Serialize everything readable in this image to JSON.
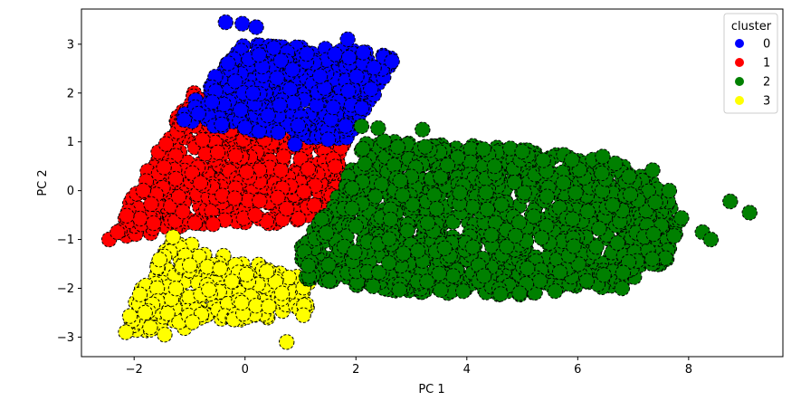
{
  "chart_data": {
    "type": "scatter",
    "title": "",
    "xlabel": "PC 1",
    "ylabel": "PC 2",
    "xlim": [
      -2.95,
      9.7
    ],
    "ylim": [
      -3.4,
      3.72
    ],
    "xticks": [
      -2,
      0,
      2,
      4,
      6,
      8
    ],
    "yticks": [
      -3,
      -2,
      -1,
      0,
      1,
      2,
      3
    ],
    "grid": false,
    "legend": {
      "title": "cluster",
      "placement": "top-right"
    },
    "series": [
      {
        "name": "0",
        "color": "#0000ff",
        "regions": [
          [
            -1.25,
            1.45
          ],
          [
            0.0,
            3.05
          ],
          [
            2.7,
            2.8
          ],
          [
            2.4,
            2.0
          ],
          [
            1.8,
            1.0
          ],
          [
            0.1,
            1.2
          ]
        ],
        "points": [
          [
            -0.35,
            3.45
          ],
          [
            -0.05,
            3.42
          ],
          [
            0.2,
            3.35
          ],
          [
            1.85,
            3.1
          ],
          [
            2.65,
            2.65
          ],
          [
            -1.1,
            1.45
          ],
          [
            1.5,
            1.05
          ],
          [
            0.9,
            0.95
          ]
        ]
      },
      {
        "name": "1",
        "color": "#ff0000",
        "regions": [
          [
            -2.45,
            -1.0
          ],
          [
            -0.95,
            2.05
          ],
          [
            0.2,
            1.2
          ],
          [
            1.8,
            1.0
          ],
          [
            1.85,
            -0.45
          ],
          [
            0.9,
            -0.65
          ],
          [
            -1.0,
            -0.75
          ]
        ],
        "points": [
          [
            -2.45,
            -1.0
          ],
          [
            -2.3,
            -0.85
          ],
          [
            1.25,
            -0.3
          ],
          [
            -0.2,
            2.0
          ]
        ]
      },
      {
        "name": "2",
        "color": "#008000",
        "regions": [
          [
            1.05,
            -1.8
          ],
          [
            1.0,
            -1.2
          ],
          [
            1.9,
            0.4
          ],
          [
            2.2,
            1.05
          ],
          [
            4.5,
            0.9
          ],
          [
            6.6,
            0.65
          ],
          [
            7.3,
            0.25
          ],
          [
            7.9,
            -0.6
          ],
          [
            7.7,
            -1.35
          ],
          [
            7.2,
            -1.8
          ],
          [
            6.3,
            -2.05
          ],
          [
            4.8,
            -2.15
          ],
          [
            2.4,
            -2.05
          ]
        ],
        "points": [
          [
            8.75,
            -0.22
          ],
          [
            9.1,
            -0.45
          ],
          [
            8.25,
            -0.85
          ],
          [
            8.4,
            -1.0
          ],
          [
            2.1,
            1.32
          ],
          [
            2.4,
            1.28
          ],
          [
            3.2,
            1.25
          ],
          [
            3.25,
            0.9
          ],
          [
            4.3,
            0.85
          ],
          [
            5.0,
            0.8
          ],
          [
            6.45,
            0.7
          ],
          [
            7.35,
            0.42
          ],
          [
            7.65,
            0.0
          ],
          [
            6.95,
            -0.08
          ],
          [
            6.8,
            -2.0
          ],
          [
            4.95,
            -2.1
          ],
          [
            3.5,
            -1.7
          ]
        ]
      },
      {
        "name": "3",
        "color": "#ffff00",
        "regions": [
          [
            -1.35,
            -0.95
          ],
          [
            1.2,
            -1.85
          ],
          [
            1.2,
            -2.35
          ],
          [
            0.85,
            -2.6
          ],
          [
            -0.6,
            -2.7
          ],
          [
            -1.6,
            -2.95
          ],
          [
            -2.15,
            -2.85
          ],
          [
            -2.05,
            -2.3
          ]
        ],
        "points": [
          [
            0.75,
            -3.1
          ],
          [
            -1.45,
            -2.95
          ],
          [
            -2.15,
            -2.9
          ],
          [
            -1.3,
            -0.95
          ],
          [
            1.05,
            -2.55
          ]
        ]
      }
    ]
  }
}
